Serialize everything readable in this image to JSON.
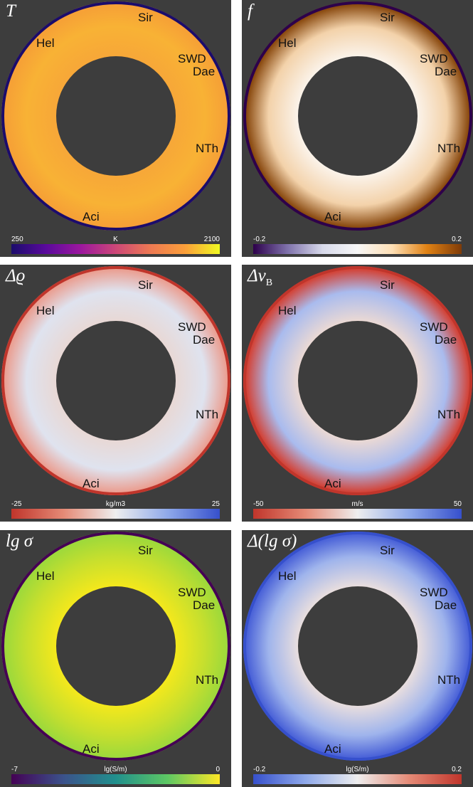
{
  "panels": [
    {
      "id": "T",
      "title_main": "T",
      "title_sub": "",
      "cbar_min": "250",
      "cbar_unit": "K",
      "cbar_max": "2100",
      "colormap": [
        "#1b0c6b",
        "#5a0a9c",
        "#9c179e",
        "#cc4778",
        "#ed7953",
        "#fb9f3a",
        "#f0f921"
      ],
      "disk_colors": [
        "#f7a738",
        "#f8b235",
        "#f6a036"
      ]
    },
    {
      "id": "f",
      "title_main": "f",
      "title_sub": "",
      "cbar_min": "-0.2",
      "cbar_unit": "",
      "cbar_max": "0.2",
      "colormap": [
        "#2d004b",
        "#8073ac",
        "#d8daeb",
        "#f7f7f7",
        "#fee0b6",
        "#e08214",
        "#7f3b08"
      ],
      "disk_colors": [
        "#fbf3ea",
        "#f3d2aa",
        "#8a4a10"
      ]
    },
    {
      "id": "drho",
      "title_main": "Δϱ",
      "title_sub": "",
      "cbar_min": "-25",
      "cbar_unit": "kg/m3",
      "cbar_max": "25",
      "colormap": [
        "#c0352b",
        "#e58a76",
        "#eeeeee",
        "#8fa9ea",
        "#3650cc"
      ],
      "disk_colors": [
        "#e8d8d5",
        "#dfe3ef",
        "#ea9f92"
      ]
    },
    {
      "id": "dvB",
      "title_main": "Δv",
      "title_sub": "B",
      "cbar_min": "-50",
      "cbar_unit": "m/s",
      "cbar_max": "50",
      "colormap": [
        "#c0352b",
        "#e58a76",
        "#eeeeee",
        "#8fa9ea",
        "#3650cc"
      ],
      "disk_colors": [
        "#ebd9d4",
        "#a9bbee",
        "#d2453a"
      ]
    },
    {
      "id": "lgsigma",
      "title_main": "lg σ",
      "title_sub": "",
      "cbar_min": "-7",
      "cbar_unit": "lg(S/m)",
      "cbar_max": "0",
      "colormap": [
        "#440154",
        "#3b528b",
        "#21908d",
        "#5dc863",
        "#fde725"
      ],
      "disk_colors": [
        "#f4e81c",
        "#c6df2e",
        "#9dd93b"
      ]
    },
    {
      "id": "dlgsigma",
      "title_main": "Δ(lg σ)",
      "title_sub": "",
      "cbar_min": "-0.2",
      "cbar_unit": "lg(S/m)",
      "cbar_max": "0.2",
      "colormap": [
        "#3650cc",
        "#8fa9ea",
        "#eeeeee",
        "#e58a76",
        "#c0352b"
      ],
      "disk_colors": [
        "#e9dede",
        "#9fb4ec",
        "#4b63d8"
      ]
    }
  ],
  "region_labels": {
    "sir": "Sir",
    "hel": "Hel",
    "swd": "SWD",
    "dae": "Dae",
    "nth": "NTh",
    "aci": "Aci"
  }
}
